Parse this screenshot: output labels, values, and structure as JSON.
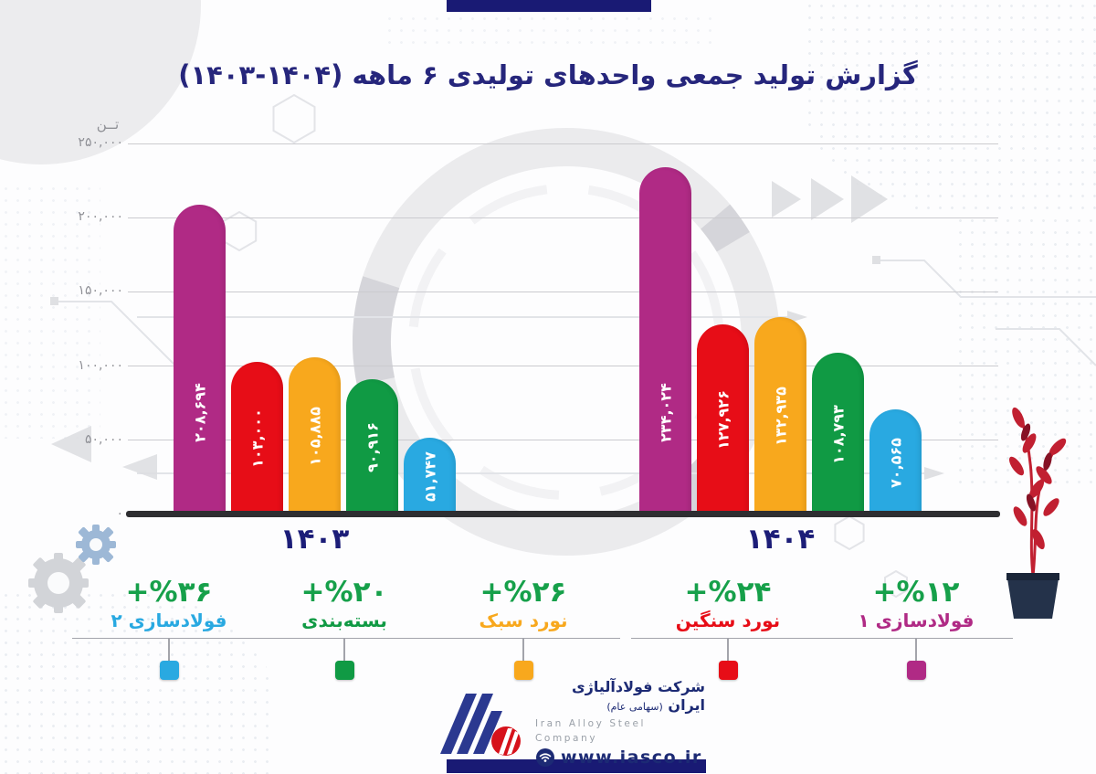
{
  "title": "گزارش تولید جمعی واحدهای تولیدی ۶ ماهه (۱۴۰۴-۱۴۰۳)",
  "y_axis": {
    "unit": "تــن",
    "ticks": [
      {
        "value": 250000,
        "label": "۲۵۰,۰۰۰"
      },
      {
        "value": 200000,
        "label": "۲۰۰,۰۰۰"
      },
      {
        "value": 150000,
        "label": "۱۵۰,۰۰۰"
      },
      {
        "value": 100000,
        "label": "۱۰۰,۰۰۰"
      },
      {
        "value": 50000,
        "label": "۵۰,۰۰۰"
      },
      {
        "value": 0,
        "label": "۰"
      }
    ]
  },
  "chart_data": {
    "type": "bar",
    "title": "گزارش تولید جمعی واحدهای تولیدی ۶ ماهه (۱۴۰۴-۱۴۰۳)",
    "ylabel": "تن",
    "ylim": [
      0,
      250000
    ],
    "grid": true,
    "legend_position": "bottom",
    "categories": [
      "۱۴۰۳",
      "۱۴۰۴"
    ],
    "category_years": [
      1403,
      1404
    ],
    "series": [
      {
        "key": "steelmaking-1",
        "name": "فولادسازی ۱",
        "color": "#b02a85",
        "values": [
          208694,
          234024
        ],
        "labels": [
          "۲۰۸,۶۹۴",
          "۲۳۴,۰۲۴"
        ],
        "growth_percent": 12,
        "growth_label": "+%۱۲"
      },
      {
        "key": "heavy-rolling",
        "name": "نورد سنگین",
        "color": "#e70d17",
        "values": [
          103000,
          127926
        ],
        "labels": [
          "۱۰۳,۰۰۰",
          "۱۲۷,۹۲۶"
        ],
        "growth_percent": 24,
        "growth_label": "+%۲۴"
      },
      {
        "key": "light-rolling",
        "name": "نورد سبک",
        "color": "#f8a81d",
        "values": [
          105885,
          132935
        ],
        "labels": [
          "۱۰۵,۸۸۵",
          "۱۳۲,۹۳۵"
        ],
        "growth_percent": 26,
        "growth_label": "+%۲۶"
      },
      {
        "key": "packaging",
        "name": "بسته‌بندی",
        "color": "#109a44",
        "values": [
          90916,
          108793
        ],
        "labels": [
          "۹۰,۹۱۶",
          "۱۰۸,۷۹۳"
        ],
        "growth_percent": 20,
        "growth_label": "+%۲۰"
      },
      {
        "key": "steelmaking-2",
        "name": "فولادسازی ۲",
        "color": "#29a9e1",
        "values": [
          51747,
          70565
        ],
        "labels": [
          "۵۱,۷۴۷",
          "۷۰,۵۶۵"
        ],
        "growth_percent": 36,
        "growth_label": "+%۳۶"
      }
    ]
  },
  "legend": {
    "percent_color": "#16a04a",
    "items": [
      {
        "key": "steelmaking-2",
        "percent": "+%۳۶",
        "name": "فولادسازی ۲",
        "color": "#29a9e1"
      },
      {
        "key": "packaging",
        "percent": "+%۲۰",
        "name": "بسته‌بندی",
        "color": "#109a44"
      },
      {
        "key": "light-rolling",
        "percent": "+%۲۶",
        "name": "نورد سبک",
        "color": "#f8a81d"
      },
      {
        "key": "heavy-rolling",
        "percent": "+%۲۴",
        "name": "نورد سنگین",
        "color": "#e70d17"
      },
      {
        "key": "steelmaking-1",
        "percent": "+%۱۲",
        "name": "فولادسازی ۱",
        "color": "#b02a85"
      }
    ]
  },
  "footer": {
    "company_fa": "شرکت فولادآلیاژی ایران",
    "company_fa_suffix": "(سهامی عام)",
    "company_en": "Iran Alloy Steel Company",
    "website": "www.iasco.ir"
  },
  "colors": {
    "navy": "#191a74",
    "title": "#26267c",
    "axis": "#2e2e31",
    "gridline": "#cbcbcf",
    "tick_text": "#8f9096",
    "legend_green": "#16a04a"
  }
}
